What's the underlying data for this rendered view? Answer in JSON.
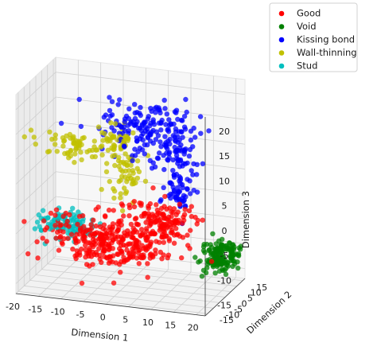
{
  "chart_data": {
    "type": "scatter",
    "title": "",
    "xlabel": "Dimension 1",
    "ylabel": "Dimension 2",
    "zlabel": "Dimension 3",
    "projection": "3d",
    "xlim": [
      -20,
      22
    ],
    "ylim": [
      -17,
      17
    ],
    "zlim": [
      -17,
      23
    ],
    "xticks": [
      -20,
      -15,
      -10,
      -5,
      0,
      5,
      10,
      15,
      20
    ],
    "yticks": [
      -15,
      -10,
      -5,
      0,
      5,
      10,
      15
    ],
    "zticks": [
      -15,
      -10,
      -5,
      0,
      5,
      10,
      15,
      20
    ],
    "grid": true,
    "legend_position": "top-right",
    "series": [
      {
        "name": "Good",
        "color": "#ff0000",
        "clusters": [
          {
            "center": [
              -2,
              -6,
              -7
            ],
            "spread": [
              7,
              3.5,
              2.5
            ],
            "count": 320
          },
          {
            "center": [
              8,
              -1,
              -3
            ],
            "spread": [
              4,
              3,
              2
            ],
            "count": 130
          }
        ]
      },
      {
        "name": "Void",
        "color": "#008000",
        "clusters": [
          {
            "center": [
              20,
              4,
              -10
            ],
            "spread": [
              1.8,
              4,
              1.6
            ],
            "count": 150
          }
        ]
      },
      {
        "name": "Kissing bond",
        "color": "#0000ff",
        "clusters": [
          {
            "center": [
              2,
              9,
              13
            ],
            "spread": [
              5,
              3,
              2.5
            ],
            "count": 150
          },
          {
            "center": [
              9,
              7,
              10
            ],
            "spread": [
              2.5,
              3,
              2.5
            ],
            "count": 70
          },
          {
            "center": [
              11,
              4,
              2
            ],
            "spread": [
              1.5,
              2,
              2.5
            ],
            "count": 60
          }
        ]
      },
      {
        "name": "Wall-thinning",
        "color": "#c0c000",
        "clusters": [
          {
            "center": [
              -12,
              4,
              9
            ],
            "spread": [
              4,
              1.5,
              1.5
            ],
            "count": 70
          },
          {
            "center": [
              -3,
              6,
              11
            ],
            "spread": [
              1.5,
              2,
              1.5
            ],
            "count": 40
          },
          {
            "center": [
              -2,
              5,
              3
            ],
            "spread": [
              2,
              2,
              3
            ],
            "count": 60
          }
        ]
      },
      {
        "name": "Stud",
        "color": "#00bfbf",
        "clusters": [
          {
            "center": [
              -14,
              4,
              -7
            ],
            "spread": [
              3.5,
              2.5,
              1.3
            ],
            "count": 110
          }
        ]
      }
    ]
  }
}
